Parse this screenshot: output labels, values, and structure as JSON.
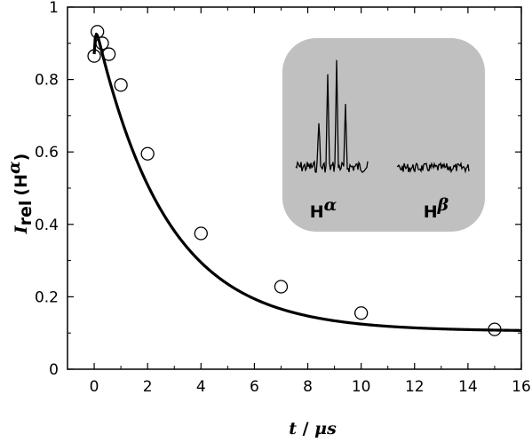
{
  "chart_data": {
    "type": "scatter",
    "xlabel": {
      "var": "t",
      "sep": " / ",
      "unit": "μs"
    },
    "ylabel": {
      "var": "I",
      "sub": "rel",
      "paren": "(H",
      "sup": "α",
      "close": ")"
    },
    "xlim": [
      -1,
      16
    ],
    "ylim": [
      0,
      1
    ],
    "xticks": [
      0,
      2,
      4,
      6,
      8,
      10,
      12,
      14,
      16
    ],
    "yticks": [
      0,
      0.2,
      0.4,
      0.6,
      0.8,
      1
    ],
    "ytick_labels": [
      "0",
      "0.2",
      "0.4",
      "0.6",
      "0.8",
      "1"
    ],
    "grid": false,
    "points": [
      {
        "x": 0.0,
        "y": 0.865
      },
      {
        "x": 0.12,
        "y": 0.932
      },
      {
        "x": 0.3,
        "y": 0.9
      },
      {
        "x": 0.55,
        "y": 0.87
      },
      {
        "x": 1.0,
        "y": 0.785
      },
      {
        "x": 2.0,
        "y": 0.595
      },
      {
        "x": 4.0,
        "y": 0.375
      },
      {
        "x": 7.0,
        "y": 0.228
      },
      {
        "x": 10.0,
        "y": 0.155
      },
      {
        "x": 15.0,
        "y": 0.11
      }
    ],
    "fit_curve": {
      "baseline": 0.105,
      "amplitude": 0.86,
      "tau": 2.65,
      "rise_tau": 0.05,
      "x_start": 0.0,
      "x_end": 16.0
    },
    "inset": {
      "label_alpha": {
        "base": "H",
        "sup": "α"
      },
      "label_beta": {
        "base": "H",
        "sup": "β"
      },
      "color": "#c0c0c0"
    }
  }
}
